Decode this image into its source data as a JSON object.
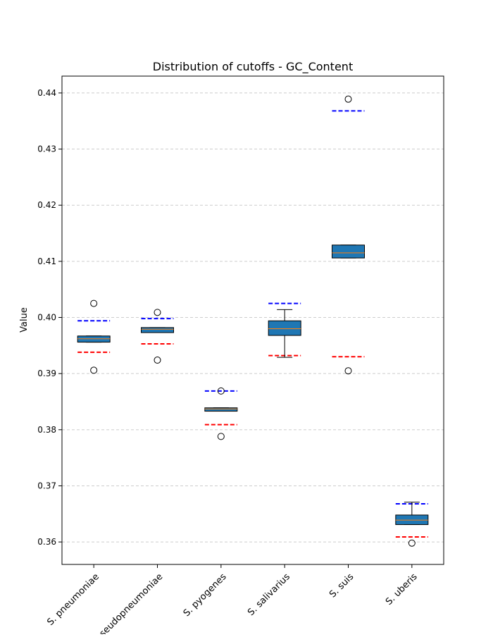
{
  "chart_data": {
    "type": "box",
    "title": "Distribution of cutoffs - GC_Content",
    "xlabel": "",
    "ylabel": "Value",
    "ylim": [
      0.356,
      0.443
    ],
    "yticks": [
      0.36,
      0.37,
      0.38,
      0.39,
      0.4,
      0.41,
      0.42,
      0.43,
      0.44
    ],
    "ytick_labels": [
      "0.36",
      "0.37",
      "0.38",
      "0.39",
      "0.40",
      "0.41",
      "0.42",
      "0.43",
      "0.44"
    ],
    "grid": "horizontal dashed",
    "categories": [
      "S. pneumoniae",
      "S. pseudopneumoniae",
      "S. pyogenes",
      "S. salivarius",
      "S. suis",
      "S. uberis"
    ],
    "boxes": [
      {
        "whisker_low": 0.3956,
        "q1": 0.3956,
        "median": 0.3962,
        "q3": 0.3967,
        "whisker_high": 0.3967,
        "outliers": [
          0.3906,
          0.4025
        ],
        "upper_cutoff": 0.3994,
        "lower_cutoff": 0.3938
      },
      {
        "whisker_low": 0.3973,
        "q1": 0.3973,
        "median": 0.3979,
        "q3": 0.3982,
        "whisker_high": 0.3982,
        "outliers": [
          0.3924,
          0.4009
        ],
        "upper_cutoff": 0.3998,
        "lower_cutoff": 0.3953
      },
      {
        "whisker_low": 0.3833,
        "q1": 0.3833,
        "median": 0.3837,
        "q3": 0.3839,
        "whisker_high": 0.3839,
        "outliers": [
          0.3788,
          0.3869
        ],
        "upper_cutoff": 0.3869,
        "lower_cutoff": 0.3809
      },
      {
        "whisker_low": 0.3929,
        "q1": 0.3968,
        "median": 0.398,
        "q3": 0.3994,
        "whisker_high": 0.4014,
        "outliers": [],
        "upper_cutoff": 0.4025,
        "lower_cutoff": 0.3932
      },
      {
        "whisker_low": 0.4106,
        "q1": 0.4106,
        "median": 0.4115,
        "q3": 0.4129,
        "whisker_high": 0.4129,
        "outliers": [
          0.3905,
          0.4389
        ],
        "upper_cutoff": 0.4368,
        "lower_cutoff": 0.393
      },
      {
        "whisker_low": 0.3631,
        "q1": 0.3631,
        "median": 0.3639,
        "q3": 0.3648,
        "whisker_high": 0.3671,
        "outliers": [
          0.3598
        ],
        "upper_cutoff": 0.3668,
        "lower_cutoff": 0.3609
      }
    ],
    "colors": {
      "box_fill": "#1f77b4",
      "median": "#ff7f0e",
      "upper_cutoff": "#0000ff",
      "lower_cutoff": "#ff0000",
      "grid": "#cccccc"
    }
  }
}
